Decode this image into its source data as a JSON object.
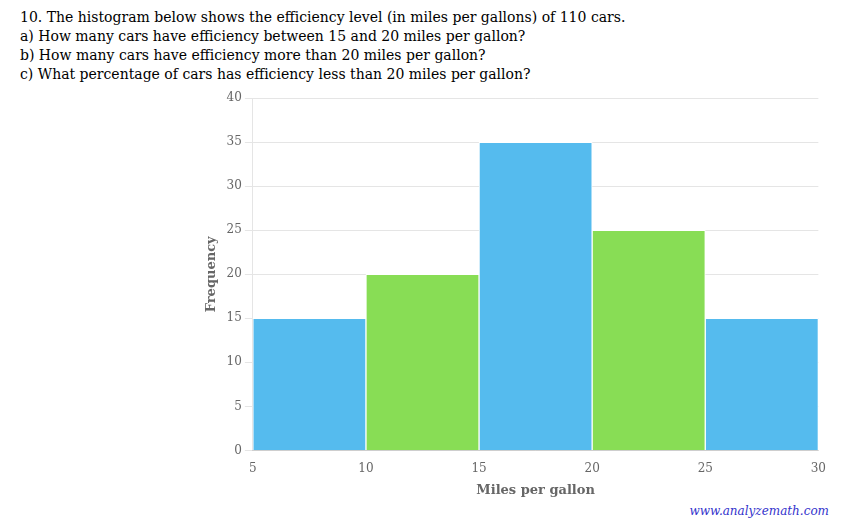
{
  "chart_data": {
    "type": "histogram",
    "annotations": [
      "10.  The histogram below shows the efficiency level (in miles per gallons) of 110 cars.",
      "a) How many cars have efficiency between 15 and 20 miles per gallon?",
      "b) How many cars have efficiency more than 20 miles per gallon?",
      "c) What percentage of cars has efficiency less than 20 miles per gallon?",
      "www.analyzemath.com"
    ],
    "bins": [
      5,
      10,
      15,
      20,
      25,
      30
    ],
    "values": [
      15,
      20,
      35,
      25,
      15
    ],
    "colors": [
      "#55BBEE",
      "#88DD55",
      "#55BBEE",
      "#88DD55",
      "#55BBEE"
    ],
    "xlabel": "Miles per gallon",
    "ylabel": "Frequency",
    "xlim": [
      5,
      30
    ],
    "xticks": [
      5,
      10,
      15,
      20,
      25,
      30
    ],
    "ylim": [
      0,
      40
    ],
    "yticks": [
      0,
      5,
      10,
      15,
      20,
      25,
      30,
      35,
      40
    ],
    "grid": true
  }
}
